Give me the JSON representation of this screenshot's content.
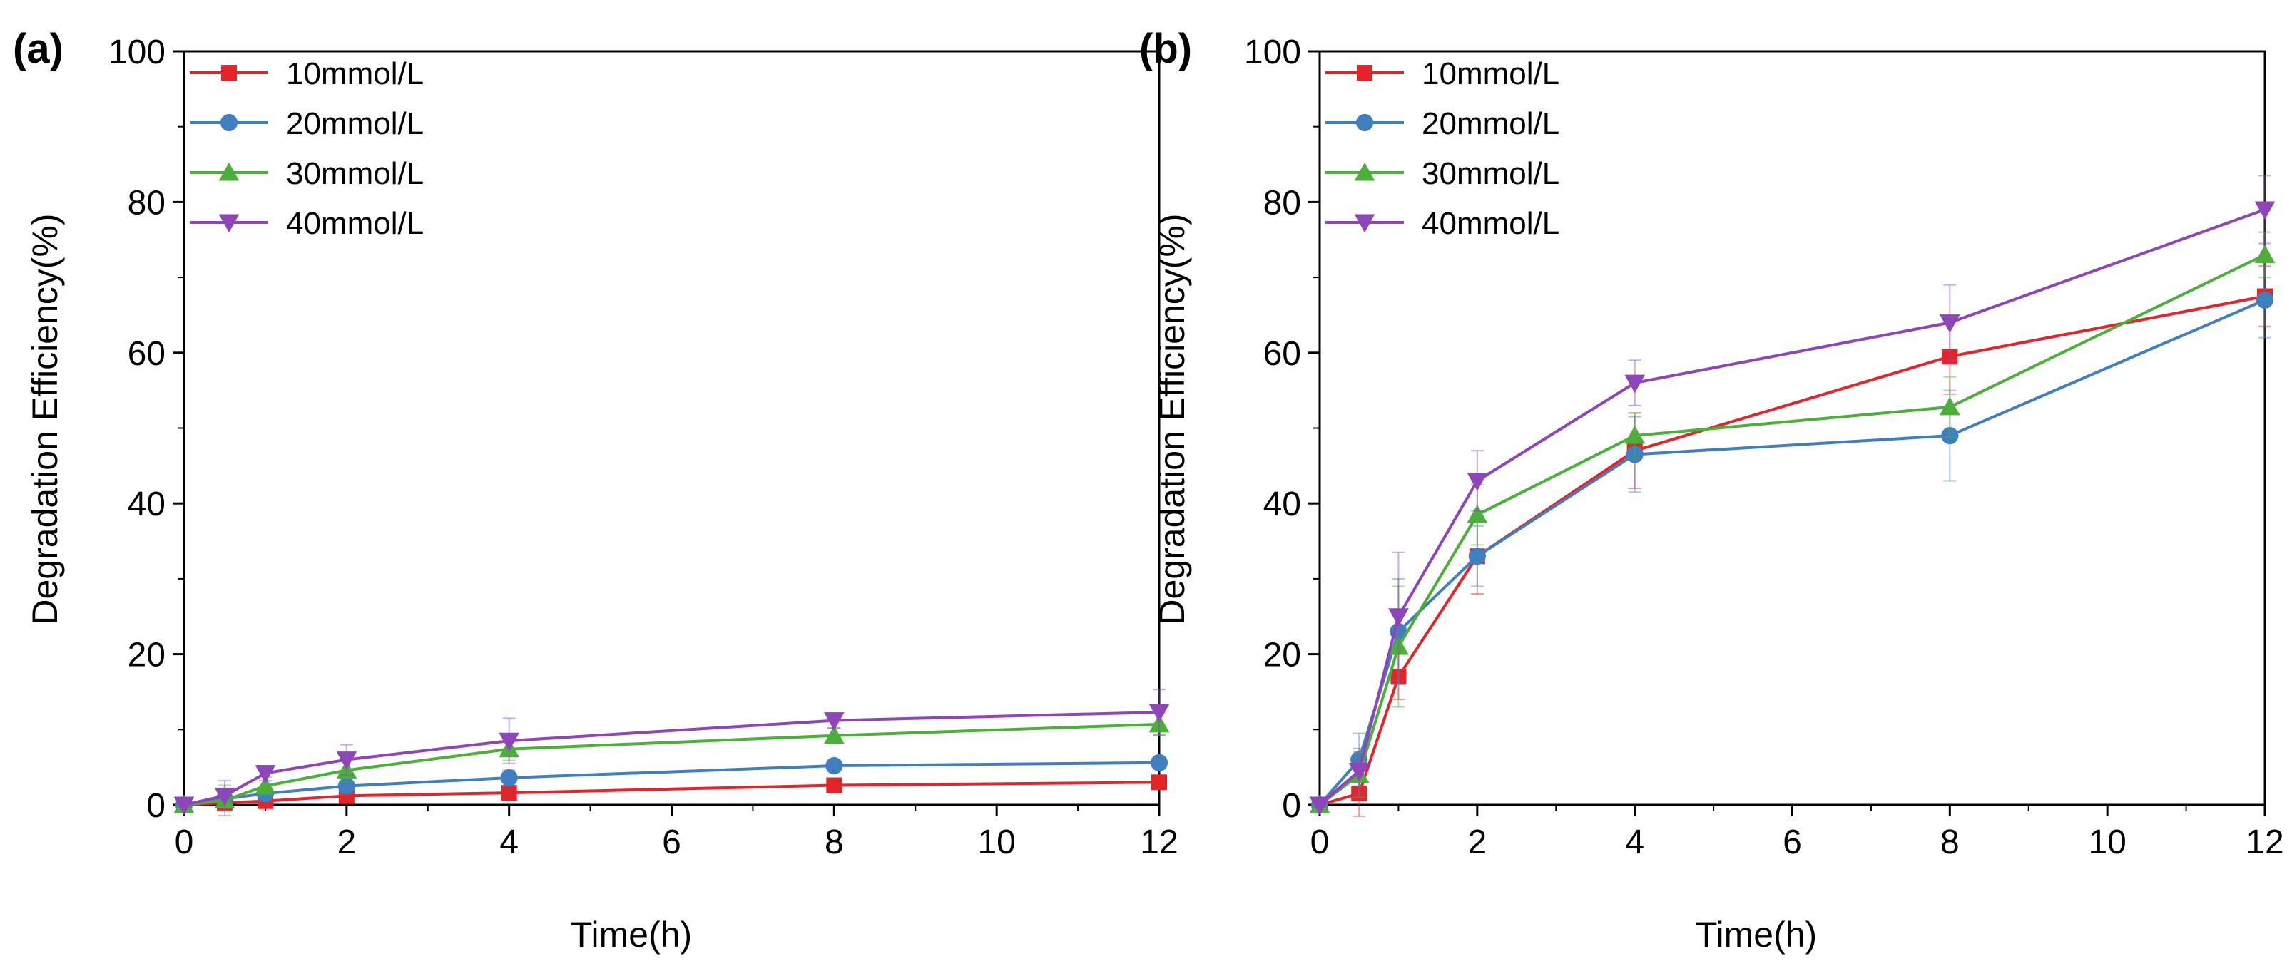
{
  "chart_data": [
    {
      "panel": "(a)",
      "type": "line",
      "xlabel": "Time(h)",
      "ylabel": "Degradation Efficiency(%)",
      "xlim": [
        0,
        12
      ],
      "ylim": [
        0,
        100
      ],
      "xticks": [
        0,
        2,
        4,
        6,
        8,
        10,
        12
      ],
      "yticks": [
        0,
        20,
        40,
        60,
        80,
        100
      ],
      "legend_position": "top-left",
      "x": [
        0,
        0.5,
        1,
        2,
        4,
        8,
        12
      ],
      "series": [
        {
          "name": "10mmol/L",
          "color": "#e3242b",
          "marker": "square",
          "values": [
            0,
            0.3,
            0.5,
            1.2,
            1.6,
            2.6,
            3.0
          ],
          "errors": [
            0.3,
            0.5,
            0.5,
            0.5,
            0.6,
            0.6,
            0.6
          ]
        },
        {
          "name": "20mmol/L",
          "color": "#3f7fbf",
          "marker": "circle",
          "values": [
            0,
            0.8,
            1.5,
            2.5,
            3.6,
            5.2,
            5.6
          ],
          "errors": [
            0.3,
            1.0,
            0.8,
            1.0,
            1.0,
            0.8,
            0.8
          ]
        },
        {
          "name": "30mmol/L",
          "color": "#4caf3a",
          "marker": "triangle-up",
          "values": [
            0,
            0.6,
            2.5,
            4.6,
            7.4,
            9.2,
            10.7
          ],
          "errors": [
            0.3,
            2.0,
            1.2,
            1.5,
            1.5,
            1.0,
            1.5
          ]
        },
        {
          "name": "40mmol/L",
          "color": "#8e45b8",
          "marker": "triangle-down",
          "values": [
            0,
            1.2,
            4.2,
            6.0,
            8.5,
            11.2,
            12.3
          ],
          "errors": [
            0.3,
            2.0,
            1.0,
            2.0,
            3.0,
            1.0,
            3.0
          ]
        }
      ]
    },
    {
      "panel": "(b)",
      "type": "line",
      "xlabel": "Time(h)",
      "ylabel": "Degradation Efficiency(%)",
      "xlim": [
        0,
        12
      ],
      "ylim": [
        0,
        100
      ],
      "xticks": [
        0,
        2,
        4,
        6,
        8,
        10,
        12
      ],
      "yticks": [
        0,
        20,
        40,
        60,
        80,
        100
      ],
      "legend_position": "top-left",
      "x": [
        0,
        0.5,
        1,
        2,
        4,
        8,
        12
      ],
      "series": [
        {
          "name": "10mmol/L",
          "color": "#e3242b",
          "marker": "square",
          "values": [
            0,
            1.5,
            17,
            33,
            47,
            59.5,
            67.5
          ],
          "errors": [
            0.3,
            3.0,
            3.0,
            5.0,
            5.0,
            5.0,
            4.0
          ]
        },
        {
          "name": "20mmol/L",
          "color": "#3f7fbf",
          "marker": "circle",
          "values": [
            0,
            6,
            23,
            33,
            46.5,
            49,
            67
          ],
          "errors": [
            0.3,
            3.5,
            7.0,
            4.0,
            5.0,
            6.0,
            5.0
          ]
        },
        {
          "name": "30mmol/L",
          "color": "#4caf3a",
          "marker": "triangle-up",
          "values": [
            0,
            4,
            21,
            38.5,
            49,
            52.8,
            73
          ],
          "errors": [
            0.3,
            3.0,
            8.0,
            4.0,
            3.0,
            4.0,
            3.0
          ]
        },
        {
          "name": "40mmol/L",
          "color": "#8e45b8",
          "marker": "triangle-down",
          "values": [
            0,
            4.5,
            25,
            43,
            56,
            64,
            79
          ],
          "errors": [
            0.3,
            3.0,
            8.5,
            4.0,
            3.0,
            5.0,
            4.5
          ]
        }
      ]
    }
  ]
}
